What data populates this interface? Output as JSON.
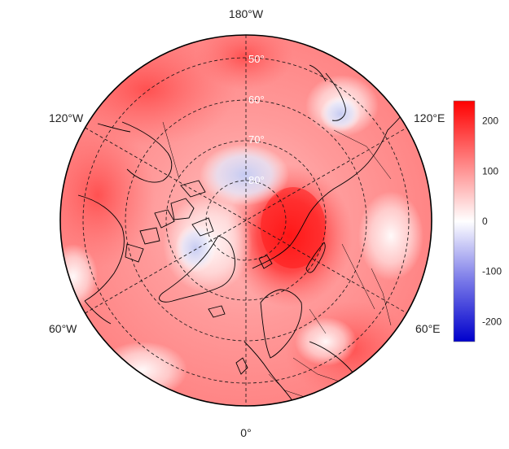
{
  "map": {
    "projection": "north-polar-stereographic",
    "longitude_labels": {
      "top": "180°W",
      "bottom": "0°",
      "upper_left": "120°W",
      "upper_right": "120°E",
      "lower_left": "60°W",
      "lower_right": "60°E"
    },
    "latitude_labels": [
      "50°",
      "60°",
      "70°",
      "80°"
    ],
    "field_colors": {
      "strong_positive": "#ff1a1a",
      "positive": "#ff6a6a",
      "weak_positive": "#ffb3b3",
      "zero": "#ffffff",
      "negative": "#c8cdf5",
      "strong_negative": "#0000d0"
    }
  },
  "colorbar": {
    "ticks": [
      "200",
      "100",
      "0",
      "-100",
      "-200"
    ],
    "min": -240,
    "max": 240,
    "colors": [
      "#0000cc",
      "#7777e8",
      "#ffffff",
      "#ff8080",
      "#ff0000"
    ]
  }
}
